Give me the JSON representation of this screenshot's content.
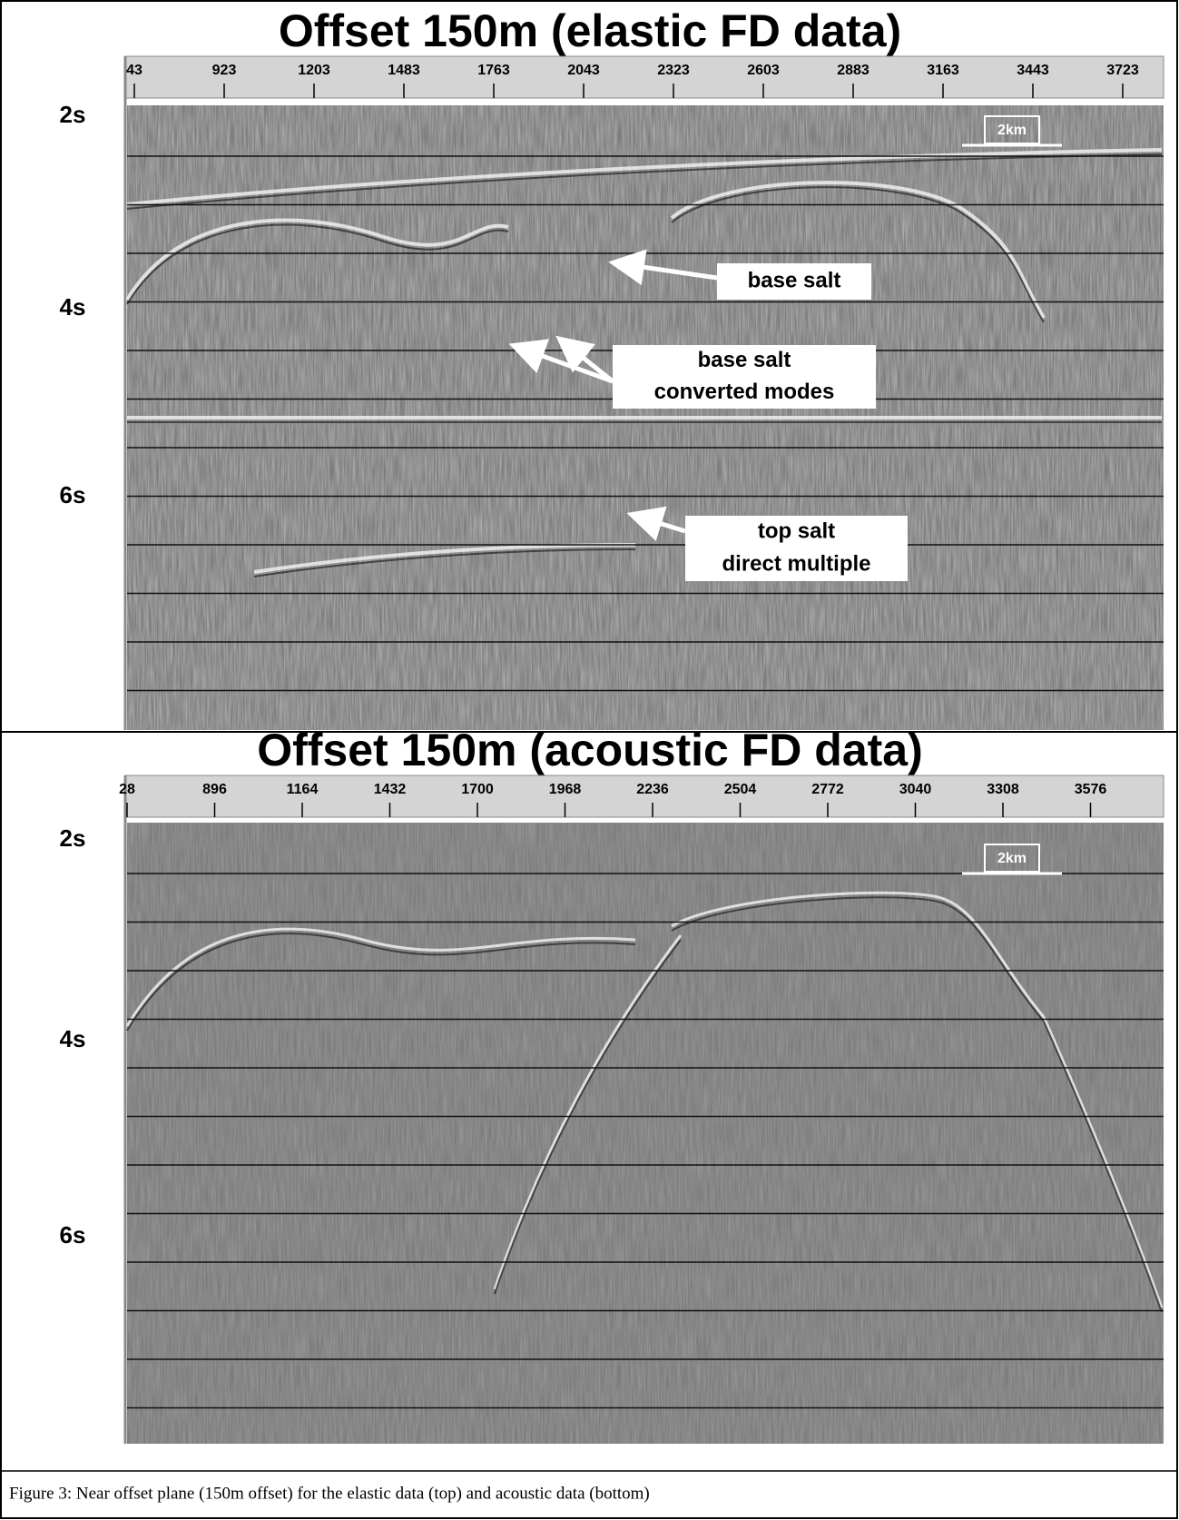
{
  "figure": {
    "panels": [
      {
        "title": "Offset 150m (elastic FD data)",
        "x_ticks": [
          "43",
          "923",
          "1203",
          "1483",
          "1763",
          "2043",
          "2323",
          "2603",
          "2883",
          "3163",
          "3443",
          "3723"
        ],
        "time_labels": [
          "2s",
          "4s",
          "6s"
        ],
        "scale_bar": "2km",
        "annotations": [
          {
            "lines": [
              "base salt"
            ]
          },
          {
            "lines": [
              "base salt",
              "converted modes"
            ]
          },
          {
            "lines": [
              "top salt",
              "direct multiple"
            ]
          }
        ]
      },
      {
        "title": "Offset 150m (acoustic FD data)",
        "x_ticks": [
          "28",
          "896",
          "1164",
          "1432",
          "1700",
          "1968",
          "2236",
          "2504",
          "2772",
          "3040",
          "3308",
          "3576"
        ],
        "time_labels": [
          "2s",
          "4s",
          "6s"
        ],
        "scale_bar": "2km"
      }
    ],
    "caption": "Figure 3: Near offset plane (150m offset) for the elastic data (top) and acoustic data (bottom)"
  }
}
